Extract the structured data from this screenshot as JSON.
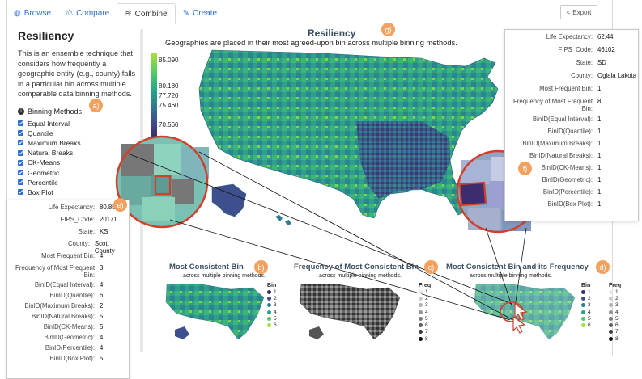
{
  "tabs": [
    {
      "label": "Browse",
      "icon": "globe-icon"
    },
    {
      "label": "Compare",
      "icon": "balance-scale-icon"
    },
    {
      "label": "Combine",
      "icon": "layers-icon"
    },
    {
      "label": "Create",
      "icon": "edit-icon"
    }
  ],
  "export_label": "Export",
  "sidebar": {
    "title": "Resiliency",
    "description": "This is an ensemble technique that considers how frequently a geographic entity (e.g., county) falls in a particular bin across multiple comparable data binning methods.",
    "methods_heading": "Binning Methods",
    "methods": [
      "Equal Interval",
      "Quantile",
      "Maximum Breaks",
      "Natural Breaks",
      "CK-Means",
      "Geometric",
      "Percentile",
      "Box Plot"
    ]
  },
  "main": {
    "title": "Resiliency",
    "subtitle": "Geographies are placed in their most agreed-upon bin across multiple binning methods.",
    "legend_ticks": [
      "85.090",
      "80.180",
      "77.720",
      "75.460",
      "70.560"
    ]
  },
  "small_maps": [
    {
      "title": "Most Consistent Bin",
      "subtitle": "across multiple binning methods."
    },
    {
      "title": "Frequency of Most Consistent Bin",
      "subtitle": "across multiple binning methods."
    },
    {
      "title": "Most Consistent Bin and its Frequency",
      "subtitle": "across multiple binning methods."
    }
  ],
  "bin_legend": {
    "heading": "Bin",
    "items": [
      "1",
      "2",
      "3",
      "4",
      "5",
      "6"
    ],
    "colors": [
      "#3d2c6e",
      "#3e4f8e",
      "#2f7c8e",
      "#25a585",
      "#4fc66a",
      "#a8de3e"
    ]
  },
  "freq_legend": {
    "heading": "Freq",
    "items": [
      "1",
      "2",
      "3",
      "4",
      "5",
      "6",
      "7",
      "8"
    ]
  },
  "badges": {
    "a": "a)",
    "b": "b)",
    "c": "c)",
    "d": "d)",
    "e": "e)",
    "f": "f)",
    "g": "g)"
  },
  "info_left": {
    "rows": [
      {
        "k": "Life Expectancy:",
        "v": "80.85"
      },
      {
        "k": "FIPS_Code:",
        "v": "20171"
      },
      {
        "k": "State:",
        "v": "KS"
      },
      {
        "k": "County:",
        "v": "Scott County"
      },
      {
        "k": "Most Frequent Bin:",
        "v": "4"
      },
      {
        "k": "Frequency of Most Frequent Bin:",
        "v": "3"
      },
      {
        "k": "BinID(Equal Interval):",
        "v": "4"
      },
      {
        "k": "BinID(Quantile):",
        "v": "6"
      },
      {
        "k": "BinID(Maximum Breaks):",
        "v": "2"
      },
      {
        "k": "BinID(Natural Breaks):",
        "v": "5"
      },
      {
        "k": "BinID(CK-Means):",
        "v": "5"
      },
      {
        "k": "BinID(Geometric):",
        "v": "4"
      },
      {
        "k": "BinID(Percentile):",
        "v": "4"
      },
      {
        "k": "BinID(Box Plot):",
        "v": "5"
      }
    ]
  },
  "info_right": {
    "rows": [
      {
        "k": "Life Expectancy:",
        "v": "62.44"
      },
      {
        "k": "FIPS_Code:",
        "v": "46102"
      },
      {
        "k": "State:",
        "v": "SD"
      },
      {
        "k": "County:",
        "v": "Oglala Lakota"
      },
      {
        "k": "Most Frequent Bin:",
        "v": "1"
      },
      {
        "k": "Frequency of Most Frequent Bin:",
        "v": "8"
      },
      {
        "k": "BinID(Equal Interval):",
        "v": "1"
      },
      {
        "k": "BinID(Quantile):",
        "v": "1"
      },
      {
        "k": "BinID(Maximum Breaks):",
        "v": "1"
      },
      {
        "k": "BinID(Natural Breaks):",
        "v": "1"
      },
      {
        "k": "BinID(CK-Means):",
        "v": "1"
      },
      {
        "k": "BinID(Geometric):",
        "v": "1"
      },
      {
        "k": "BinID(Percentile):",
        "v": "1"
      },
      {
        "k": "BinID(Box Plot):",
        "v": "1"
      }
    ]
  },
  "colors": {
    "accent": "#2a6fc9",
    "badge": "#f2a15f",
    "highlight": "#d0402a"
  }
}
